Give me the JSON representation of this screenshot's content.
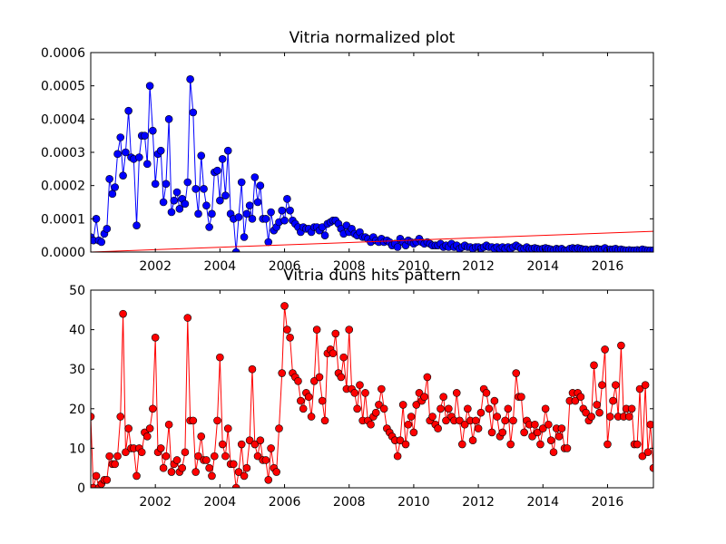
{
  "chart_data": [
    {
      "type": "line",
      "title": "Vitria normalized plot",
      "x": [
        2000,
        2000.08,
        2000.17,
        2000.25,
        2000.33,
        2000.42,
        2000.5,
        2000.58,
        2000.67,
        2000.75,
        2000.83,
        2000.92,
        2001,
        2001.08,
        2001.17,
        2001.25,
        2001.33,
        2001.42,
        2001.5,
        2001.58,
        2001.67,
        2001.75,
        2001.83,
        2001.92,
        2002,
        2002.08,
        2002.17,
        2002.25,
        2002.33,
        2002.42,
        2002.5,
        2002.58,
        2002.67,
        2002.75,
        2002.83,
        2002.92,
        2003,
        2003.08,
        2003.17,
        2003.25,
        2003.33,
        2003.42,
        2003.5,
        2003.58,
        2003.67,
        2003.75,
        2003.83,
        2003.92,
        2004,
        2004.08,
        2004.17,
        2004.25,
        2004.33,
        2004.42,
        2004.5,
        2004.58,
        2004.67,
        2004.75,
        2004.83,
        2004.92,
        2005,
        2005.08,
        2005.17,
        2005.25,
        2005.33,
        2005.42,
        2005.5,
        2005.58,
        2005.67,
        2005.75,
        2005.83,
        2005.92,
        2006,
        2006.08,
        2006.17,
        2006.25,
        2006.33,
        2006.42,
        2006.5,
        2006.58,
        2006.67,
        2006.75,
        2006.83,
        2006.92,
        2007,
        2007.08,
        2007.17,
        2007.25,
        2007.33,
        2007.42,
        2007.5,
        2007.58,
        2007.67,
        2007.75,
        2007.83,
        2007.92,
        2008,
        2008.08,
        2008.17,
        2008.25,
        2008.33,
        2008.42,
        2008.5,
        2008.58,
        2008.67,
        2008.75,
        2008.83,
        2008.92,
        2009,
        2009.08,
        2009.17,
        2009.25,
        2009.33,
        2009.42,
        2009.5,
        2009.58,
        2009.67,
        2009.75,
        2009.83,
        2009.92,
        2010,
        2010.08,
        2010.17,
        2010.25,
        2010.33,
        2010.42,
        2010.5,
        2010.58,
        2010.67,
        2010.75,
        2010.83,
        2010.92,
        2011,
        2011.08,
        2011.17,
        2011.25,
        2011.33,
        2011.42,
        2011.5,
        2011.58,
        2011.67,
        2011.75,
        2011.83,
        2011.92,
        2012,
        2012.08,
        2012.17,
        2012.25,
        2012.33,
        2012.42,
        2012.5,
        2012.58,
        2012.67,
        2012.75,
        2012.83,
        2012.92,
        2013,
        2013.08,
        2013.17,
        2013.25,
        2013.33,
        2013.42,
        2013.5,
        2013.58,
        2013.67,
        2013.75,
        2013.83,
        2013.92,
        2014,
        2014.08,
        2014.17,
        2014.25,
        2014.33,
        2014.42,
        2014.5,
        2014.58,
        2014.67,
        2014.75,
        2014.83,
        2014.92,
        2015,
        2015.08,
        2015.17,
        2015.25,
        2015.33,
        2015.42,
        2015.5,
        2015.58,
        2015.67,
        2015.75,
        2015.83,
        2015.92,
        2016,
        2016.08,
        2016.17,
        2016.25,
        2016.33,
        2016.42,
        2016.5,
        2016.58,
        2016.67,
        2016.75,
        2016.83,
        2016.92,
        2017,
        2017.08,
        2017.17,
        2017.25,
        2017.33,
        2017.42
      ],
      "series": [
        {
          "color": "#0000ff",
          "marker": "circle",
          "values": [
            4.5e-05,
            3.5e-05,
            0.0001,
            3.5e-05,
            3e-05,
            5.5e-05,
            7e-05,
            0.00022,
            0.000175,
            0.000195,
            0.000295,
            0.000345,
            0.00023,
            0.0003,
            0.000425,
            0.000285,
            0.00028,
            8e-05,
            0.000285,
            0.00035,
            0.00035,
            0.000265,
            0.0005,
            0.000365,
            0.000205,
            0.000295,
            0.000305,
            0.00015,
            0.000205,
            0.0004,
            0.00012,
            0.000155,
            0.00018,
            0.00013,
            0.00016,
            0.000145,
            0.00021,
            0.00052,
            0.00042,
            0.00019,
            0.000115,
            0.00029,
            0.00019,
            0.00014,
            7.5e-05,
            0.000115,
            0.00024,
            0.000245,
            0.000155,
            0.00028,
            0.00017,
            0.000305,
            0.000115,
            0.0001,
            0,
            0.000105,
            0.00021,
            4.5e-05,
            0.000115,
            0.00014,
            0.0001,
            0.000225,
            0.00015,
            0.0002,
            0.0001,
            0.0001,
            3e-05,
            0.00012,
            6.5e-05,
            7.5e-05,
            9e-05,
            0.000125,
            9.5e-05,
            0.00016,
            0.000125,
            9.5e-05,
            8.5e-05,
            7.5e-05,
            6e-05,
            7.5e-05,
            7e-05,
            7e-05,
            6e-05,
            7.5e-05,
            7.5e-05,
            6.5e-05,
            7.5e-05,
            5e-05,
            8.5e-05,
            9e-05,
            9.5e-05,
            9.5e-05,
            8.5e-05,
            7e-05,
            5.5e-05,
            8e-05,
            6e-05,
            7e-05,
            5.5e-05,
            5e-05,
            6e-05,
            4.5e-05,
            4.5e-05,
            4e-05,
            3e-05,
            4.5e-05,
            3.5e-05,
            3e-05,
            4e-05,
            3e-05,
            3.5e-05,
            3e-05,
            2e-05,
            2.5e-05,
            1.5e-05,
            4e-05,
            3e-05,
            2e-05,
            3.5e-05,
            3e-05,
            2.5e-05,
            3e-05,
            4e-05,
            3e-05,
            2.5e-05,
            3e-05,
            2.5e-05,
            2e-05,
            2e-05,
            2e-05,
            2.5e-05,
            1.5e-05,
            2e-05,
            1.5e-05,
            2.5e-05,
            1.5e-05,
            2e-05,
            1e-05,
            1.5e-05,
            2e-05,
            1.5e-05,
            1.5e-05,
            1e-05,
            1.5e-05,
            1.5e-05,
            1e-05,
            1.5e-05,
            2e-05,
            1.5e-05,
            1.5e-05,
            1e-05,
            1.5e-05,
            1e-05,
            1.5e-05,
            1e-05,
            1.5e-05,
            1e-05,
            1.5e-05,
            2e-05,
            1.5e-05,
            1e-05,
            1e-05,
            1.5e-05,
            1e-05,
            1e-05,
            1.2e-05,
            1e-05,
            8e-06,
            1e-05,
            1.2e-05,
            1e-05,
            8e-06,
            5e-06,
            1e-05,
            8e-06,
            1e-05,
            5e-06,
            5e-06,
            1e-05,
            1.2e-05,
            1e-05,
            1.2e-05,
            1e-05,
            8e-06,
            8e-06,
            5e-06,
            8e-06,
            8e-06,
            1e-05,
            8e-06,
            8e-06,
            1.2e-05,
            5e-06,
            8e-06,
            8e-06,
            1e-05,
            6e-06,
            8e-06,
            6e-06,
            5e-06,
            6e-06,
            5e-06,
            5e-06,
            6e-06,
            5e-06,
            8e-06,
            6e-06,
            5e-06,
            5e-06,
            5e-06
          ]
        },
        {
          "color": "#ff0000",
          "x": [
            2000,
            2017.42
          ],
          "values": [
            0,
            6.25e-05
          ]
        }
      ],
      "xlim": [
        2000,
        2017.42
      ],
      "xticks": [
        2002,
        2004,
        2006,
        2008,
        2010,
        2012,
        2014,
        2016
      ],
      "ylim": [
        0,
        0.0006
      ],
      "yticks": [
        {
          "value": 0,
          "label": "0.0000"
        },
        {
          "value": 0.0001,
          "label": "0.0001"
        },
        {
          "value": 0.0002,
          "label": "0.0002"
        },
        {
          "value": 0.0003,
          "label": "0.0003"
        },
        {
          "value": 0.0004,
          "label": "0.0004"
        },
        {
          "value": 0.0005,
          "label": "0.0005"
        },
        {
          "value": 0.0006,
          "label": "0.0006"
        }
      ]
    },
    {
      "type": "line",
      "title": "Vitria duns hits pattern",
      "x": [
        2000,
        2000.08,
        2000.17,
        2000.25,
        2000.33,
        2000.42,
        2000.5,
        2000.58,
        2000.67,
        2000.75,
        2000.83,
        2000.92,
        2001,
        2001.08,
        2001.17,
        2001.25,
        2001.33,
        2001.42,
        2001.5,
        2001.58,
        2001.67,
        2001.75,
        2001.83,
        2001.92,
        2002,
        2002.08,
        2002.17,
        2002.25,
        2002.33,
        2002.42,
        2002.5,
        2002.58,
        2002.67,
        2002.75,
        2002.83,
        2002.92,
        2003,
        2003.08,
        2003.17,
        2003.25,
        2003.33,
        2003.42,
        2003.5,
        2003.58,
        2003.67,
        2003.75,
        2003.83,
        2003.92,
        2004,
        2004.08,
        2004.17,
        2004.25,
        2004.33,
        2004.42,
        2004.5,
        2004.58,
        2004.67,
        2004.75,
        2004.83,
        2004.92,
        2005,
        2005.08,
        2005.17,
        2005.25,
        2005.33,
        2005.42,
        2005.5,
        2005.58,
        2005.67,
        2005.75,
        2005.83,
        2005.92,
        2006,
        2006.08,
        2006.17,
        2006.25,
        2006.33,
        2006.42,
        2006.5,
        2006.58,
        2006.67,
        2006.75,
        2006.83,
        2006.92,
        2007,
        2007.08,
        2007.17,
        2007.25,
        2007.33,
        2007.42,
        2007.5,
        2007.58,
        2007.67,
        2007.75,
        2007.83,
        2007.92,
        2008,
        2008.08,
        2008.17,
        2008.25,
        2008.33,
        2008.42,
        2008.5,
        2008.58,
        2008.67,
        2008.75,
        2008.83,
        2008.92,
        2009,
        2009.08,
        2009.17,
        2009.25,
        2009.33,
        2009.42,
        2009.5,
        2009.58,
        2009.67,
        2009.75,
        2009.83,
        2009.92,
        2010,
        2010.08,
        2010.17,
        2010.25,
        2010.33,
        2010.42,
        2010.5,
        2010.58,
        2010.67,
        2010.75,
        2010.83,
        2010.92,
        2011,
        2011.08,
        2011.17,
        2011.25,
        2011.33,
        2011.42,
        2011.5,
        2011.58,
        2011.67,
        2011.75,
        2011.83,
        2011.92,
        2012,
        2012.08,
        2012.17,
        2012.25,
        2012.33,
        2012.42,
        2012.5,
        2012.58,
        2012.67,
        2012.75,
        2012.83,
        2012.92,
        2013,
        2013.08,
        2013.17,
        2013.25,
        2013.33,
        2013.42,
        2013.5,
        2013.58,
        2013.67,
        2013.75,
        2013.83,
        2013.92,
        2014,
        2014.08,
        2014.17,
        2014.25,
        2014.33,
        2014.42,
        2014.5,
        2014.58,
        2014.67,
        2014.75,
        2014.83,
        2014.92,
        2015,
        2015.08,
        2015.17,
        2015.25,
        2015.33,
        2015.42,
        2015.5,
        2015.58,
        2015.67,
        2015.75,
        2015.83,
        2015.92,
        2016,
        2016.08,
        2016.17,
        2016.25,
        2016.33,
        2016.42,
        2016.5,
        2016.58,
        2016.67,
        2016.75,
        2016.83,
        2016.92,
        2017,
        2017.08,
        2017.17,
        2017.25,
        2017.33,
        2017.42
      ],
      "series": [
        {
          "color": "#ff0000",
          "marker": "circle",
          "values": [
            18,
            0,
            3,
            0,
            1,
            2,
            2,
            8,
            6,
            6,
            8,
            18,
            44,
            9,
            15,
            10,
            10,
            3,
            10,
            9,
            14,
            13,
            15,
            20,
            38,
            9,
            10,
            5,
            8,
            16,
            4,
            6,
            7,
            4,
            5,
            9,
            43,
            17,
            17,
            4,
            8,
            13,
            7,
            7,
            5,
            3,
            8,
            17,
            33,
            11,
            8,
            15,
            6,
            6,
            0,
            4,
            11,
            3,
            5,
            12,
            30,
            11,
            8,
            12,
            7,
            7,
            2,
            10,
            5,
            4,
            15,
            29,
            46,
            40,
            38,
            29,
            28,
            27,
            22,
            20,
            24,
            23,
            18,
            27,
            40,
            28,
            22,
            17,
            34,
            35,
            34,
            39,
            29,
            28,
            33,
            25,
            40,
            25,
            24,
            20,
            26,
            17,
            24,
            17,
            16,
            18,
            19,
            21,
            25,
            20,
            15,
            14,
            13,
            12,
            8,
            12,
            21,
            11,
            16,
            18,
            14,
            21,
            24,
            22,
            23,
            28,
            17,
            18,
            16,
            15,
            20,
            23,
            17,
            20,
            18,
            17,
            24,
            17,
            11,
            16,
            20,
            17,
            12,
            17,
            15,
            19,
            25,
            24,
            20,
            14,
            22,
            18,
            13,
            14,
            17,
            20,
            11,
            17,
            29,
            23,
            23,
            14,
            17,
            16,
            13,
            16,
            14,
            11,
            15,
            20,
            16,
            12,
            9,
            15,
            13,
            15,
            10,
            10,
            22,
            24,
            22,
            24,
            23,
            20,
            19,
            17,
            18,
            31,
            21,
            19,
            26,
            35,
            11,
            18,
            22,
            26,
            18,
            36,
            18,
            20,
            18,
            20,
            11,
            11,
            25,
            8,
            26,
            9,
            16,
            5
          ]
        }
      ],
      "xlim": [
        2000,
        2017.42
      ],
      "xticks": [
        2002,
        2004,
        2006,
        2008,
        2010,
        2012,
        2014,
        2016
      ],
      "ylim": [
        0,
        50
      ],
      "yticks": [
        0,
        10,
        20,
        30,
        40,
        50
      ]
    }
  ]
}
